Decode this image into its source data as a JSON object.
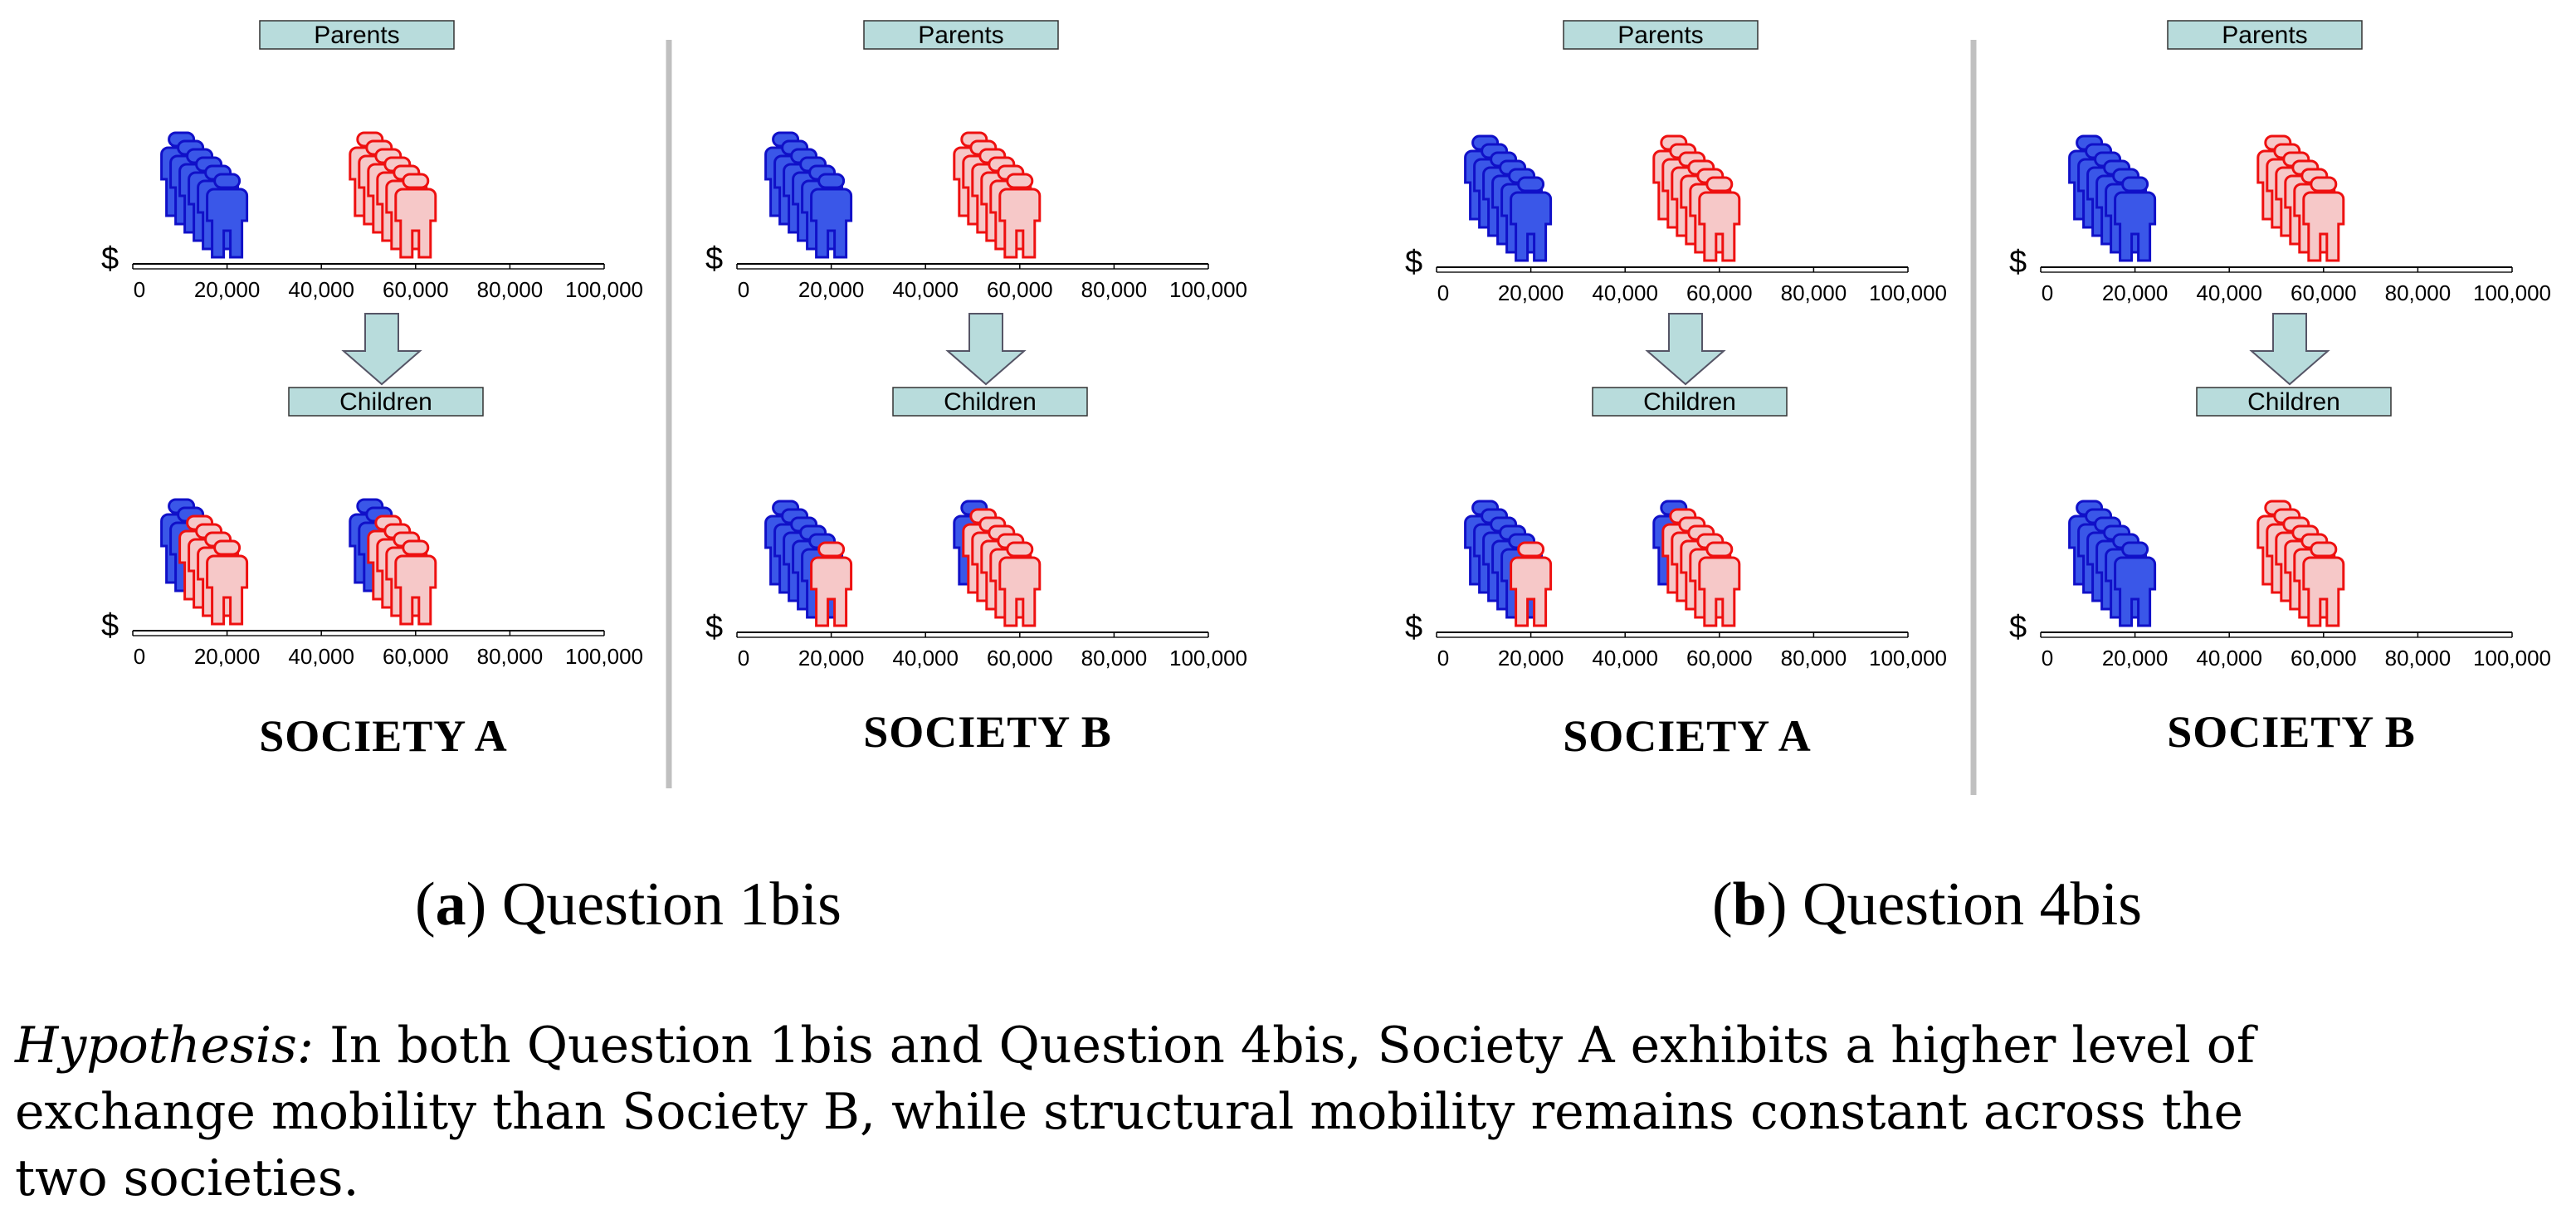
{
  "colors": {
    "blue_fill": "#3a57e8",
    "blue_stroke": "#1010c8",
    "red_fill": "#f6c8c8",
    "red_stroke": "#ee1010",
    "label_box": "#b8dcdc",
    "divider": "#c0c0c0"
  },
  "labels": {
    "parents": "Parents",
    "children": "Children",
    "currency": "$"
  },
  "axis_ticks": [
    "0",
    "20,000",
    "40,000",
    "60,000",
    "80,000",
    "100,000"
  ],
  "panels": [
    {
      "society": "SOCIETY  A",
      "parents": [
        {
          "group_value": 20000,
          "color": "blue"
        },
        {
          "group_value": 60000,
          "color": "red"
        }
      ],
      "children": [
        {
          "group_value": 20000,
          "back": "blue",
          "front": "red",
          "front_count": 4
        },
        {
          "group_value": 60000,
          "back": "blue",
          "front": "red",
          "front_count": 4
        }
      ]
    },
    {
      "society": "SOCIETY B",
      "parents": [
        {
          "group_value": 20000,
          "color": "blue"
        },
        {
          "group_value": 60000,
          "color": "red"
        }
      ],
      "children": [
        {
          "group_value": 20000,
          "back": "blue",
          "front": "red",
          "front_count": 1
        },
        {
          "group_value": 60000,
          "back": "blue",
          "front": "red",
          "front_count": 5
        }
      ]
    },
    {
      "society": "SOCIETY  A",
      "parents": [
        {
          "group_value": 20000,
          "color": "blue"
        },
        {
          "group_value": 60000,
          "color": "red"
        }
      ],
      "children": [
        {
          "group_value": 20000,
          "back": "blue",
          "front": "red",
          "front_count": 1
        },
        {
          "group_value": 60000,
          "back": "blue",
          "front": "red",
          "front_count": 5
        }
      ]
    },
    {
      "society": "SOCIETY B",
      "parents": [
        {
          "group_value": 20000,
          "color": "blue"
        },
        {
          "group_value": 60000,
          "color": "red"
        }
      ],
      "children": [
        {
          "group_value": 20000,
          "back": "blue",
          "front": "blue",
          "front_count": 6
        },
        {
          "group_value": 60000,
          "back": "red",
          "front": "red",
          "front_count": 6
        }
      ]
    }
  ],
  "subfigures": [
    {
      "letter": "a",
      "title": "Question 1bis"
    },
    {
      "letter": "b",
      "title": "Question 4bis"
    }
  ],
  "hypothesis": {
    "label": "Hypothesis:",
    "line1": " In both Question 1bis and Question 4bis, Society A exhibits a higher level of",
    "line2": "exchange mobility than Society B, while structural mobility remains constant across the",
    "line3": "two societies."
  }
}
